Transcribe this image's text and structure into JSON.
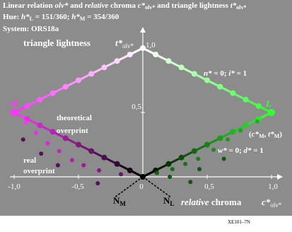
{
  "header": {
    "line1": {
      "t1": "Linear relation ",
      "t2": "olv*",
      "t3": " and ",
      "t4": "relative",
      "t5": " chroma ",
      "t6": "c*",
      "t7": "olv*",
      "t8": " and triangle lightness ",
      "t9": "t*",
      "t10": "olv*"
    },
    "line2": {
      "t1": "Hue: ",
      "t2": "h*",
      "t3": "L",
      "t4": " = 151/360; ",
      "t5": "h*",
      "t6": "M",
      "t7": " = 354/360"
    },
    "line3": "System: ORS18a"
  },
  "labels": {
    "triangle_lightness": "triangle lightness",
    "t_axis_main": "t*",
    "t_axis_sub": "olv*",
    "t_top_tick": "1,0",
    "t_mid_tick": "0,5",
    "M": "M",
    "L": "L",
    "theoretical": "theoretical",
    "overprint1": "overprint",
    "real": "real",
    "overprint2": "overprint",
    "n_i": {
      "n": "n*",
      "mid": " = 0; ",
      "i": "i*",
      "end": " = 1"
    },
    "w_d": {
      "w": "w*",
      "mid": " = 0; ",
      "d": "d*",
      "end": " = 1"
    },
    "cMtM": {
      "open": "(",
      "c": "c*",
      "c_sub": "M",
      "comma": ", ",
      "t": "t*",
      "t_sub": "M",
      "close": ")"
    },
    "relative_chroma": "relative",
    "chroma": " chroma",
    "c_axis_main": "c*",
    "c_axis_sub": "olv*",
    "NM_main": "N",
    "NM_sub": "M",
    "NL_main": "N",
    "NL_sub": "L",
    "footer_code": "XE101–7N"
  },
  "ticks": {
    "x_labels": [
      "-1,0",
      "-0,5",
      "0",
      "0,5",
      "1,0"
    ]
  },
  "colors": {
    "background": "#8c8c8c",
    "green_bright": "#33ff33",
    "green_mid": "#22aa22",
    "green_dark": "#115511",
    "magenta_bright": "#ff33ff",
    "magenta_mid": "#aa22aa",
    "magenta_dark": "#551155",
    "black": "#000000",
    "white": "#ffffff"
  },
  "chart_data": {
    "type": "scatter",
    "xlim": [
      -1,
      1
    ],
    "ylim": [
      0,
      1
    ],
    "theoretical_M": [
      [
        -1.0,
        0.5
      ],
      [
        -0.9,
        0.45
      ],
      [
        -0.8,
        0.4
      ],
      [
        -0.7,
        0.35
      ],
      [
        -0.6,
        0.3
      ],
      [
        -0.5,
        0.25
      ],
      [
        -0.4,
        0.2
      ],
      [
        -0.3,
        0.15
      ],
      [
        -0.2,
        0.1
      ],
      [
        -0.1,
        0.05
      ]
    ],
    "theoretical_L": [
      [
        1.0,
        0.5
      ],
      [
        0.9,
        0.45
      ],
      [
        0.8,
        0.4
      ],
      [
        0.7,
        0.35
      ],
      [
        0.6,
        0.3
      ],
      [
        0.5,
        0.25
      ],
      [
        0.4,
        0.2
      ],
      [
        0.3,
        0.15
      ],
      [
        0.2,
        0.1
      ],
      [
        0.1,
        0.05
      ]
    ],
    "upper_M": [
      [
        -0.9,
        0.55
      ],
      [
        -0.8,
        0.6
      ],
      [
        -0.7,
        0.65
      ],
      [
        -0.6,
        0.7
      ],
      [
        -0.5,
        0.75
      ],
      [
        -0.4,
        0.8
      ],
      [
        -0.3,
        0.85
      ],
      [
        -0.2,
        0.9
      ],
      [
        -0.1,
        0.95
      ]
    ],
    "upper_L": [
      [
        0.9,
        0.55
      ],
      [
        0.8,
        0.6
      ],
      [
        0.7,
        0.65
      ],
      [
        0.6,
        0.7
      ],
      [
        0.5,
        0.75
      ],
      [
        0.4,
        0.8
      ],
      [
        0.3,
        0.85
      ],
      [
        0.2,
        0.9
      ],
      [
        0.1,
        0.95
      ]
    ],
    "real_M": [
      [
        -0.91,
        0.42
      ],
      [
        -0.83,
        0.34
      ],
      [
        -0.74,
        0.26
      ],
      [
        -0.65,
        0.2
      ],
      [
        -0.55,
        0.13
      ],
      [
        -0.46,
        0.09
      ],
      [
        -0.34,
        0.05
      ],
      [
        -0.17,
        0.02
      ],
      [
        -0.93,
        0.29
      ],
      [
        -0.79,
        0.18
      ],
      [
        -0.66,
        0.09
      ],
      [
        -0.35,
        -0.05
      ]
    ],
    "real_L": [
      [
        0.89,
        0.43
      ],
      [
        0.76,
        0.36
      ],
      [
        0.66,
        0.29
      ],
      [
        0.55,
        0.21
      ],
      [
        0.43,
        0.14
      ],
      [
        0.33,
        0.1
      ],
      [
        0.23,
        0.06
      ],
      [
        0.11,
        0.03
      ],
      [
        0.63,
        0.14
      ],
      [
        0.44,
        0.06
      ],
      [
        0.21,
        0.0
      ],
      [
        0.37,
        -0.04
      ]
    ]
  }
}
